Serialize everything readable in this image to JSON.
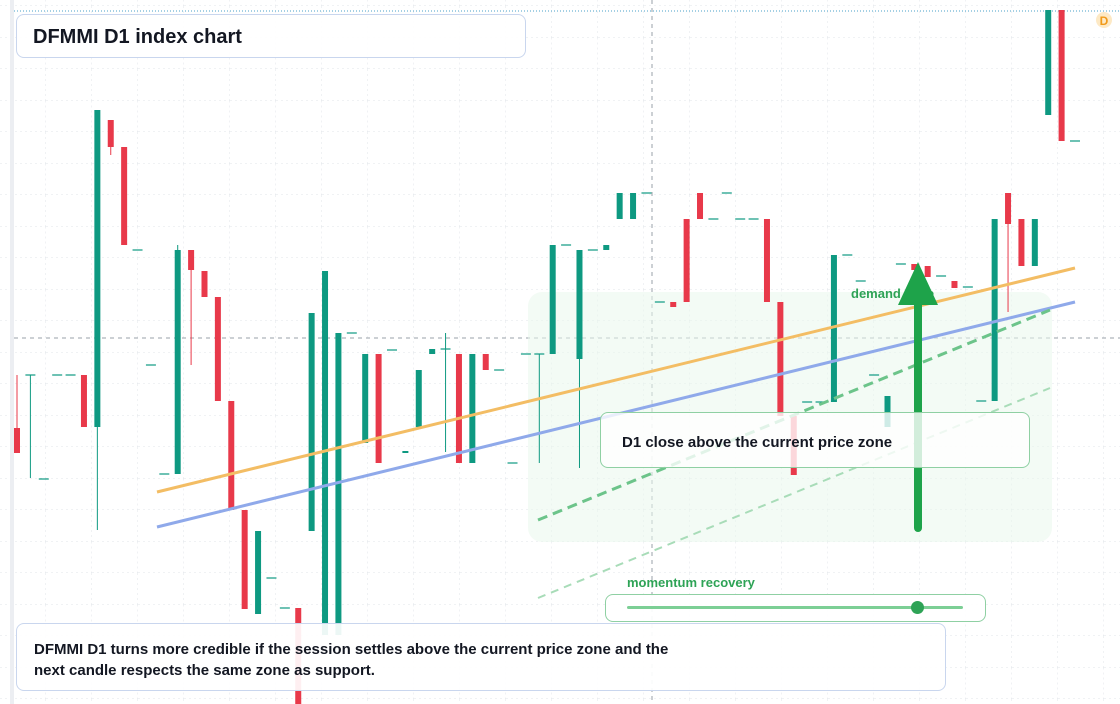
{
  "chart_data": {
    "type": "candlestick",
    "title": "DFMMI D1 index chart",
    "badge": "D",
    "zone_label": "demand zone",
    "callout": "D1 close above the current price zone",
    "slider_label": "momentum recovery",
    "note": "DFMMI D1 turns more credible if the session settles above the current price zone and the next candle respects the same zone as support.",
    "up_color": "#0e9981",
    "down_color": "#e8394a",
    "ylim": [
      0,
      704
    ],
    "categories": [
      null,
      null,
      null,
      null,
      null,
      null,
      null,
      null,
      null,
      null,
      null,
      null,
      null,
      null,
      null,
      null,
      null,
      null,
      null,
      null,
      null,
      null,
      null,
      null,
      null,
      null,
      null,
      null,
      null,
      null,
      null,
      null,
      null,
      null,
      null,
      null,
      null,
      null,
      null,
      null,
      null,
      null,
      null,
      null,
      null,
      null,
      null,
      null,
      null,
      null,
      null,
      null,
      null,
      null,
      null,
      null,
      null,
      null,
      null,
      null,
      null,
      null,
      null,
      null,
      null,
      null,
      null,
      null,
      null,
      null,
      null,
      null,
      null,
      null,
      null,
      null,
      null,
      null,
      null,
      null
    ],
    "open": [
      276,
      329,
      225,
      329,
      329,
      329,
      277,
      584,
      557,
      454,
      339,
      230,
      230,
      454,
      433,
      407,
      303,
      194,
      90,
      126,
      96,
      96,
      173,
      69,
      69,
      371,
      261,
      350,
      354,
      251,
      277,
      350,
      355,
      350,
      241,
      350,
      334,
      241,
      350,
      350,
      350,
      459,
      345,
      454,
      454,
      485,
      485,
      511,
      402,
      402,
      485,
      511,
      485,
      511,
      485,
      485,
      485,
      402,
      288,
      302,
      302,
      302,
      449,
      423,
      329,
      277,
      440,
      440,
      438,
      428,
      423,
      417,
      303,
      303,
      511,
      485,
      438,
      589,
      694,
      563
    ],
    "high": [
      329,
      329,
      225,
      329,
      329,
      329,
      594,
      584,
      557,
      454,
      339,
      230,
      459,
      454,
      433,
      407,
      303,
      194,
      173,
      126,
      96,
      96,
      391,
      433,
      371,
      371,
      350,
      350,
      354,
      253,
      334,
      355,
      371,
      350,
      350,
      350,
      334,
      241,
      350,
      350,
      459,
      459,
      454,
      454,
      459,
      511,
      511,
      511,
      402,
      402,
      485,
      511,
      485,
      511,
      485,
      485,
      485,
      402,
      288,
      302,
      302,
      449,
      449,
      423,
      329,
      308,
      440,
      440,
      438,
      428,
      423,
      417,
      303,
      485,
      511,
      485,
      485,
      694,
      694,
      563
    ],
    "low": [
      251,
      226,
      225,
      329,
      329,
      277,
      174,
      549,
      459,
      454,
      339,
      230,
      230,
      339,
      407,
      303,
      194,
      95,
      90,
      126,
      96,
      0,
      173,
      69,
      69,
      371,
      261,
      241,
      354,
      251,
      277,
      350,
      252,
      241,
      241,
      334,
      334,
      241,
      350,
      241,
      350,
      459,
      236,
      454,
      454,
      485,
      485,
      511,
      402,
      397,
      402,
      485,
      485,
      511,
      485,
      485,
      402,
      288,
      229,
      302,
      302,
      302,
      449,
      423,
      329,
      277,
      440,
      434,
      427,
      428,
      416,
      417,
      303,
      303,
      392,
      438,
      438,
      589,
      563,
      563
    ],
    "close": [
      251,
      329,
      225,
      329,
      329,
      277,
      594,
      557,
      459,
      454,
      339,
      230,
      454,
      434,
      407,
      303,
      194,
      95,
      173,
      126,
      96,
      0,
      391,
      433,
      371,
      371,
      350,
      241,
      354,
      253,
      334,
      355,
      355,
      241,
      350,
      334,
      334,
      241,
      350,
      350,
      459,
      459,
      454,
      454,
      459,
      511,
      511,
      511,
      402,
      397,
      402,
      485,
      485,
      511,
      485,
      485,
      402,
      288,
      229,
      302,
      302,
      449,
      449,
      423,
      329,
      308,
      440,
      434,
      427,
      428,
      416,
      417,
      303,
      485,
      480,
      438,
      485,
      694,
      563,
      563
    ]
  }
}
